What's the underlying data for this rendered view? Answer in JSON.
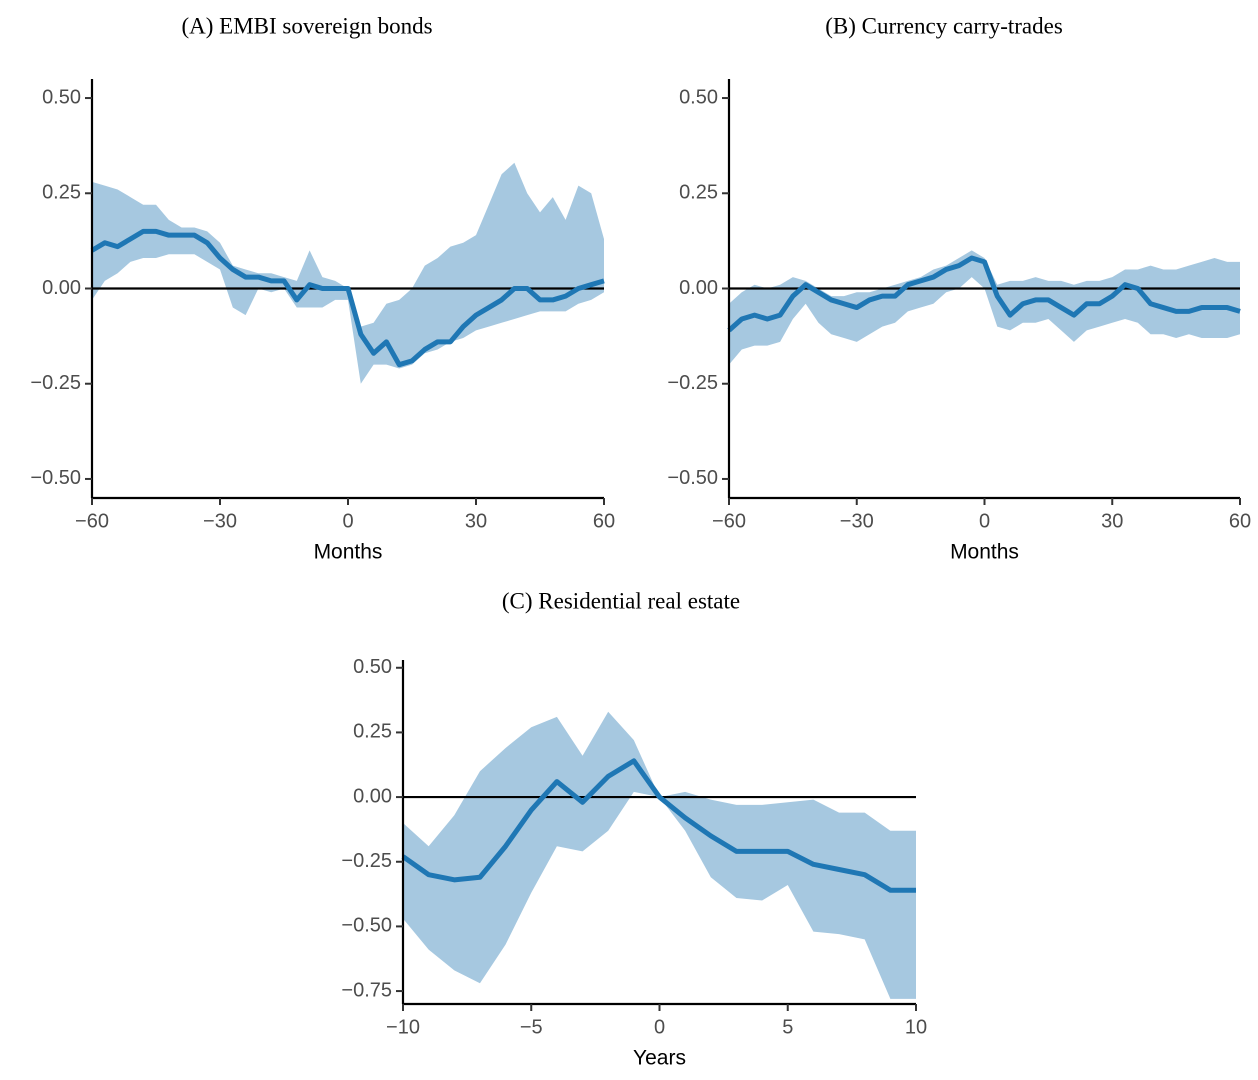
{
  "chart_data": [
    {
      "type": "line",
      "title": "(A) EMBI sovereign bonds",
      "xlabel": "Months",
      "x": [
        -60,
        -57,
        -54,
        -51,
        -48,
        -45,
        -42,
        -39,
        -36,
        -33,
        -30,
        -27,
        -24,
        -21,
        -18,
        -15,
        -12,
        -9,
        -6,
        -3,
        0,
        3,
        6,
        9,
        12,
        15,
        18,
        21,
        24,
        27,
        30,
        33,
        36,
        39,
        42,
        45,
        48,
        51,
        54,
        57,
        60
      ],
      "series": [
        {
          "color": "#1f77b4",
          "band_color": "#a6c8e0",
          "values": [
            0.1,
            0.12,
            0.11,
            0.13,
            0.15,
            0.15,
            0.14,
            0.14,
            0.14,
            0.12,
            0.08,
            0.05,
            0.03,
            0.03,
            0.02,
            0.02,
            -0.03,
            0.01,
            0.0,
            0.0,
            0.0,
            -0.12,
            -0.17,
            -0.14,
            -0.2,
            -0.19,
            -0.16,
            -0.14,
            -0.14,
            -0.1,
            -0.07,
            -0.05,
            -0.03,
            0.0,
            0.0,
            -0.03,
            -0.03,
            -0.02,
            0.0,
            0.01,
            0.02
          ],
          "upper": [
            0.28,
            0.27,
            0.26,
            0.24,
            0.22,
            0.22,
            0.18,
            0.16,
            0.16,
            0.15,
            0.12,
            0.06,
            0.05,
            0.04,
            0.04,
            0.03,
            0.02,
            0.1,
            0.03,
            0.02,
            0.0,
            -0.1,
            -0.09,
            -0.04,
            -0.03,
            0.0,
            0.06,
            0.08,
            0.11,
            0.12,
            0.14,
            0.22,
            0.3,
            0.33,
            0.25,
            0.2,
            0.24,
            0.18,
            0.27,
            0.25,
            0.13
          ],
          "lower": [
            -0.03,
            0.02,
            0.04,
            0.07,
            0.08,
            0.08,
            0.09,
            0.09,
            0.09,
            0.07,
            0.05,
            -0.05,
            -0.07,
            0.0,
            -0.01,
            0.0,
            -0.05,
            -0.05,
            -0.05,
            -0.03,
            -0.03,
            -0.25,
            -0.2,
            -0.2,
            -0.21,
            -0.2,
            -0.17,
            -0.16,
            -0.14,
            -0.13,
            -0.11,
            -0.1,
            -0.09,
            -0.08,
            -0.07,
            -0.06,
            -0.06,
            -0.06,
            -0.04,
            -0.03,
            -0.01
          ]
        }
      ],
      "hline": 0,
      "xlim": [
        -60,
        60
      ],
      "xticks": [
        {
          "value": -60,
          "label": "−60"
        },
        {
          "value": -30,
          "label": "−30"
        },
        0,
        30,
        60
      ],
      "ylim": [
        -0.55,
        0.55
      ],
      "yticks": [
        {
          "value": -0.5,
          "label": "−0.50"
        },
        {
          "value": -0.25,
          "label": "−0.25"
        },
        {
          "value": 0,
          "label": "0.00"
        },
        0.25,
        {
          "value": 0.5,
          "label": "0.50"
        }
      ]
    },
    {
      "type": "line",
      "title": "(B) Currency carry-trades",
      "xlabel": "Months",
      "x": [
        -60,
        -57,
        -54,
        -51,
        -48,
        -45,
        -42,
        -39,
        -36,
        -33,
        -30,
        -27,
        -24,
        -21,
        -18,
        -15,
        -12,
        -9,
        -6,
        -3,
        0,
        3,
        6,
        9,
        12,
        15,
        18,
        21,
        24,
        27,
        30,
        33,
        36,
        39,
        42,
        45,
        48,
        51,
        54,
        57,
        60
      ],
      "series": [
        {
          "color": "#1f77b4",
          "band_color": "#a6c8e0",
          "values": [
            -0.11,
            -0.08,
            -0.07,
            -0.08,
            -0.07,
            -0.02,
            0.01,
            -0.01,
            -0.03,
            -0.04,
            -0.05,
            -0.03,
            -0.02,
            -0.02,
            0.01,
            0.02,
            0.03,
            0.05,
            0.06,
            0.08,
            0.07,
            -0.02,
            -0.07,
            -0.04,
            -0.03,
            -0.03,
            -0.05,
            -0.07,
            -0.04,
            -0.04,
            -0.02,
            0.01,
            0.0,
            -0.04,
            -0.05,
            -0.06,
            -0.06,
            -0.05,
            -0.05,
            -0.05,
            -0.06
          ],
          "upper": [
            -0.04,
            -0.01,
            0.01,
            0.0,
            0.01,
            0.03,
            0.02,
            0.0,
            -0.02,
            -0.02,
            -0.01,
            -0.01,
            0.0,
            0.01,
            0.02,
            0.03,
            0.05,
            0.06,
            0.08,
            0.1,
            0.08,
            0.01,
            0.02,
            0.02,
            0.03,
            0.02,
            0.02,
            0.01,
            0.02,
            0.02,
            0.03,
            0.05,
            0.05,
            0.06,
            0.05,
            0.05,
            0.06,
            0.07,
            0.08,
            0.07,
            0.07
          ],
          "lower": [
            -0.2,
            -0.16,
            -0.15,
            -0.15,
            -0.14,
            -0.08,
            -0.04,
            -0.09,
            -0.12,
            -0.13,
            -0.14,
            -0.12,
            -0.1,
            -0.09,
            -0.06,
            -0.05,
            -0.04,
            -0.01,
            0.0,
            0.03,
            0.0,
            -0.1,
            -0.11,
            -0.09,
            -0.09,
            -0.08,
            -0.11,
            -0.14,
            -0.11,
            -0.1,
            -0.09,
            -0.08,
            -0.09,
            -0.12,
            -0.12,
            -0.13,
            -0.12,
            -0.13,
            -0.13,
            -0.13,
            -0.12
          ]
        }
      ],
      "hline": 0,
      "xlim": [
        -60,
        60
      ],
      "xticks": [
        {
          "value": -60,
          "label": "−60"
        },
        {
          "value": -30,
          "label": "−30"
        },
        0,
        30,
        60
      ],
      "ylim": [
        -0.55,
        0.55
      ],
      "yticks": [
        {
          "value": -0.5,
          "label": "−0.50"
        },
        {
          "value": -0.25,
          "label": "−0.25"
        },
        {
          "value": 0,
          "label": "0.00"
        },
        0.25,
        {
          "value": 0.5,
          "label": "0.50"
        }
      ]
    },
    {
      "type": "line",
      "title": "(C) Residential real estate",
      "xlabel": "Years",
      "x": [
        -10,
        -9,
        -8,
        -7,
        -6,
        -5,
        -4,
        -3,
        -2,
        -1,
        0,
        1,
        2,
        3,
        4,
        5,
        6,
        7,
        8,
        9,
        10
      ],
      "series": [
        {
          "color": "#1f77b4",
          "band_color": "#a6c8e0",
          "values": [
            -0.23,
            -0.3,
            -0.32,
            -0.31,
            -0.19,
            -0.05,
            0.06,
            -0.02,
            0.08,
            0.14,
            0.0,
            -0.08,
            -0.15,
            -0.21,
            -0.21,
            -0.21,
            -0.26,
            -0.28,
            -0.3,
            -0.36,
            -0.36
          ],
          "upper": [
            -0.1,
            -0.19,
            -0.07,
            0.1,
            0.19,
            0.27,
            0.31,
            0.16,
            0.33,
            0.22,
            0.0,
            0.02,
            -0.01,
            -0.03,
            -0.03,
            -0.02,
            -0.01,
            -0.06,
            -0.06,
            -0.13,
            -0.13
          ],
          "lower": [
            -0.47,
            -0.59,
            -0.67,
            -0.72,
            -0.57,
            -0.37,
            -0.19,
            -0.21,
            -0.13,
            0.02,
            0.0,
            -0.13,
            -0.31,
            -0.39,
            -0.4,
            -0.34,
            -0.52,
            -0.53,
            -0.55,
            -0.78,
            -0.78
          ]
        }
      ],
      "hline": 0,
      "xlim": [
        -10,
        10
      ],
      "xticks": [
        {
          "value": -10,
          "label": "−10"
        },
        {
          "value": -5,
          "label": "−5"
        },
        0,
        5,
        10
      ],
      "ylim": [
        -0.8,
        0.53
      ],
      "yticks": [
        {
          "value": -0.75,
          "label": "−0.75"
        },
        {
          "value": -0.5,
          "label": "−0.50"
        },
        {
          "value": -0.25,
          "label": "−0.25"
        },
        {
          "value": 0,
          "label": "0.00"
        },
        0.25,
        {
          "value": 0.5,
          "label": "0.50"
        }
      ]
    }
  ]
}
